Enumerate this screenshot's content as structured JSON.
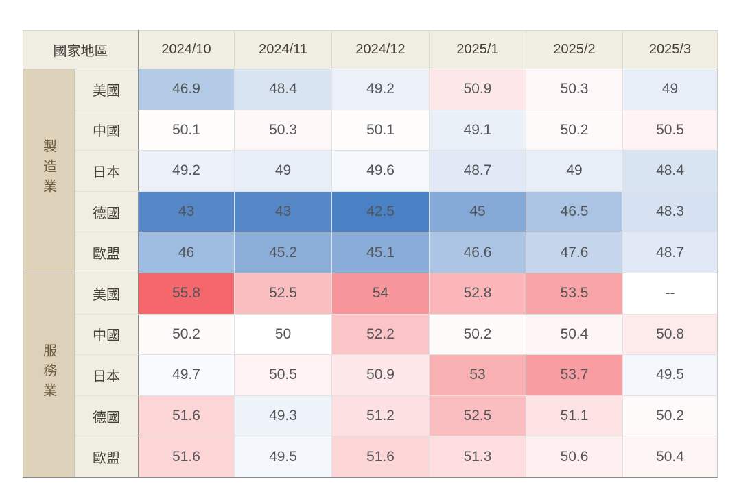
{
  "colors": {
    "page_background": "#ffffff",
    "header_background": "#f0ede3",
    "sector_cell_background": "#ddd1ba",
    "region_cell_background": "#f0ede3",
    "sector_text": "#6b5a3e",
    "header_text": "#45413a",
    "value_text": "#55565a",
    "dark_border": "#8c8c8c",
    "light_border": "#e2e2e2",
    "heatmap_blue": "#4a80c4",
    "heatmap_red": "#f4676d",
    "heatmap_neutral": "#ffffff"
  },
  "chart_data": {
    "type": "heatmap",
    "title": "",
    "row_group_label": "國家地區",
    "columns": [
      "2024/10",
      "2024/11",
      "2024/12",
      "2025/1",
      "2025/2",
      "2025/3"
    ],
    "missing_display": "--",
    "color_scale": {
      "midpoint": 50,
      "blue_max": {
        "value": 42.5,
        "color": "#4a80c4"
      },
      "red_max": {
        "value": 55.8,
        "color": "#f4676d"
      },
      "neutral": "#ffffff"
    },
    "groups": [
      {
        "name": "製造業",
        "rows": [
          {
            "region": "美國",
            "values": [
              46.9,
              48.4,
              49.2,
              50.9,
              50.3,
              49
            ]
          },
          {
            "region": "中國",
            "values": [
              50.1,
              50.3,
              50.1,
              49.1,
              50.2,
              50.5
            ]
          },
          {
            "region": "日本",
            "values": [
              49.2,
              49,
              49.6,
              48.7,
              49,
              48.4
            ]
          },
          {
            "region": "德國",
            "values": [
              43,
              43,
              42.5,
              45,
              46.5,
              48.3
            ]
          },
          {
            "region": "歐盟",
            "values": [
              46,
              45.2,
              45.1,
              46.6,
              47.6,
              48.7
            ]
          }
        ]
      },
      {
        "name": "服務業",
        "rows": [
          {
            "region": "美國",
            "values": [
              55.8,
              52.5,
              54,
              52.8,
              53.5,
              null
            ]
          },
          {
            "region": "中國",
            "values": [
              50.2,
              50,
              52.2,
              50.2,
              50.4,
              50.8
            ]
          },
          {
            "region": "日本",
            "values": [
              49.7,
              50.5,
              50.9,
              53,
              53.7,
              49.5
            ]
          },
          {
            "region": "德國",
            "values": [
              51.6,
              49.3,
              51.2,
              52.5,
              51.1,
              50.2
            ]
          },
          {
            "region": "歐盟",
            "values": [
              51.6,
              49.5,
              51.6,
              51.3,
              50.6,
              50.4
            ]
          }
        ]
      }
    ]
  }
}
